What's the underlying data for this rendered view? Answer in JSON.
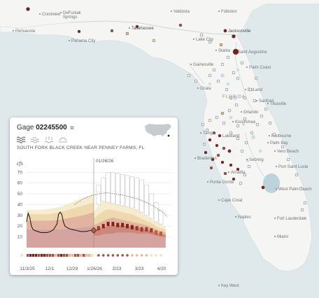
{
  "map": {
    "state_label": "FLORIDA",
    "cities": [
      {
        "name": "Crestview",
        "bold": false
      },
      {
        "name": "Pensacola",
        "bold": false
      },
      {
        "name": "DeFuniak\nSprings",
        "bold": false
      },
      {
        "name": "Panama City",
        "bold": false
      },
      {
        "name": "Tallahassee",
        "bold": true
      },
      {
        "name": "Valdosta",
        "bold": false
      },
      {
        "name": "Folkston",
        "bold": false
      },
      {
        "name": "Jacksonville",
        "bold": true
      },
      {
        "name": "Lake City",
        "bold": false
      },
      {
        "name": "Starke",
        "bold": false
      },
      {
        "name": "Saint Augustine",
        "bold": false
      },
      {
        "name": "Gainesville",
        "bold": false
      },
      {
        "name": "Palm Coast",
        "bold": false
      },
      {
        "name": "Ocala",
        "bold": false
      },
      {
        "name": "DeLand",
        "bold": false
      },
      {
        "name": "Sanford",
        "bold": false
      },
      {
        "name": "Orlando",
        "bold": false
      },
      {
        "name": "Titusville",
        "bold": false
      },
      {
        "name": "Lakeland",
        "bold": false
      },
      {
        "name": "Kissimmee",
        "bold": false
      },
      {
        "name": "Melbourne",
        "bold": false
      },
      {
        "name": "Palm Bay",
        "bold": false
      },
      {
        "name": "Tampa",
        "bold": false
      },
      {
        "name": "Bradenton",
        "bold": false
      },
      {
        "name": "Sebring",
        "bold": false
      },
      {
        "name": "Vero Beach",
        "bold": false
      },
      {
        "name": "Arcadia",
        "bold": false
      },
      {
        "name": "Port Saint Lucie",
        "bold": false
      },
      {
        "name": "Punta Gorda",
        "bold": false
      },
      {
        "name": "Cape Coral",
        "bold": false
      },
      {
        "name": "West Palm Beach",
        "bold": false
      },
      {
        "name": "Naples",
        "bold": false
      },
      {
        "name": "Fort Lauderdale",
        "bold": false
      },
      {
        "name": "Miami",
        "bold": false
      },
      {
        "name": "Key West",
        "bold": false
      }
    ],
    "colors": {
      "much_below": "#7f1d1d",
      "below": "#b04a3a",
      "normal": "#e8b989",
      "above": "#f2e3b3",
      "high": "#ffffff"
    }
  },
  "panel": {
    "gage_prefix": "Gage",
    "gage_id": "02245500",
    "external_icon": "external-link-icon",
    "site_name": "SOUTH FORK BLACK CREEK NEAR PENNEY FARMS, FL",
    "flow_icon_names": [
      "flow-waves-icon",
      "flow-low-icon",
      "flow-dry-icon",
      "flow-drought-icon"
    ]
  },
  "chart_data": {
    "type": "line",
    "ylabel": "cfs",
    "yticks": [
      10,
      20,
      30,
      40,
      50,
      60,
      70
    ],
    "ylim": [
      0,
      78
    ],
    "marker_label": "01/26/26",
    "xtick_labels": [
      "11/3/25",
      "12/1",
      "12/29",
      "1/26/26",
      "2/23",
      "3/23",
      "4/20"
    ],
    "x_days": [
      0,
      28,
      56,
      84,
      112,
      140,
      168
    ],
    "marker_day": 84,
    "observed": {
      "days": [
        0,
        2,
        4,
        6,
        8,
        10,
        14,
        18,
        22,
        26,
        30,
        34,
        38,
        40,
        42,
        44,
        46,
        48,
        50,
        52,
        56,
        62,
        68,
        74,
        80,
        84
      ],
      "cfs": [
        24,
        32,
        28,
        20,
        17,
        16,
        15,
        14,
        14,
        14,
        15,
        17,
        22,
        31,
        33,
        31,
        24,
        20,
        19,
        18,
        17,
        16,
        15,
        15,
        16,
        16
      ]
    },
    "percentile_bands_historical": {
      "days": [
        0,
        14,
        28,
        42,
        56,
        70,
        84
      ],
      "p10": [
        9,
        9,
        9,
        9,
        10,
        11,
        11
      ],
      "p25": [
        17,
        17,
        17,
        17,
        18,
        19,
        20
      ],
      "p50": [
        21,
        21,
        21,
        22,
        23,
        24,
        26
      ],
      "p75": [
        25,
        25,
        25,
        26,
        28,
        30,
        33
      ],
      "p90": [
        31,
        31,
        31,
        33,
        36,
        39,
        42
      ],
      "max": [
        35,
        35,
        36,
        38,
        42,
        46,
        50
      ]
    },
    "forecast_bands": {
      "days": [
        84,
        90,
        96,
        102,
        108,
        114,
        120,
        126,
        132,
        138,
        144,
        150,
        156,
        162,
        168,
        174
      ],
      "min": [
        11,
        11,
        12,
        13,
        13,
        14,
        14,
        14,
        14,
        13,
        13,
        13,
        12,
        11,
        10,
        9
      ],
      "p10": [
        17,
        18,
        19,
        20,
        21,
        21,
        21,
        20,
        20,
        19,
        18,
        17,
        16,
        14,
        13,
        12
      ],
      "p25": [
        21,
        23,
        25,
        27,
        28,
        27,
        26,
        25,
        24,
        23,
        22,
        21,
        19,
        17,
        15,
        14
      ],
      "p75": [
        27,
        31,
        34,
        36,
        35,
        34,
        33,
        32,
        31,
        29,
        27,
        25,
        23,
        20,
        18,
        17
      ],
      "p90": [
        33,
        40,
        43,
        42,
        41,
        40,
        39,
        38,
        37,
        35,
        33,
        30,
        27,
        24,
        22,
        20
      ],
      "max": [
        45,
        58,
        65,
        70,
        70,
        69,
        68,
        67,
        66,
        65,
        63,
        58,
        50,
        42,
        35,
        30
      ]
    },
    "forecast_median": {
      "days": [
        84,
        90,
        96,
        102,
        108,
        114,
        120,
        126,
        132,
        138,
        144,
        150,
        156,
        162,
        168,
        174
      ],
      "cfs": [
        16,
        18,
        20,
        22,
        22,
        21,
        21,
        20,
        19,
        18,
        17,
        17,
        16,
        14,
        13,
        12
      ]
    },
    "historical_max_line": {
      "days": [
        60,
        70,
        80,
        90,
        100,
        110,
        120,
        130,
        140,
        150,
        160,
        170,
        176
      ],
      "cfs": [
        40,
        45,
        48,
        50,
        51,
        50,
        49,
        47,
        45,
        42,
        38,
        33,
        29
      ]
    },
    "timeline_status": [
      "below",
      "much_below",
      "much_below",
      "much_below",
      "below",
      "much_below",
      "much_below",
      "below",
      "below",
      "below",
      "normal",
      "below",
      "much_below",
      "below",
      "below",
      "normal",
      "normal",
      "below",
      "below",
      "normal",
      "below",
      "normal",
      "normal",
      "above"
    ]
  }
}
